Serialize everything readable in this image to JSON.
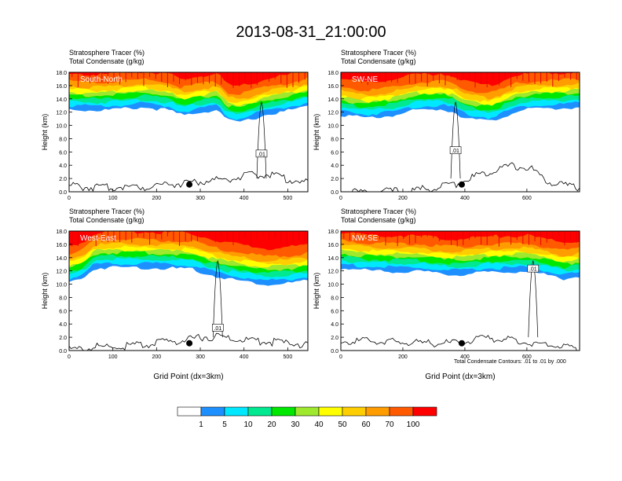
{
  "title": "2013-08-31_21:00:00",
  "chart_data": [
    {
      "type": "heatmap",
      "panel_label": "South-North",
      "title_lines": [
        "Stratosphere Tracer   (%)",
        "Total Condensate   (g/kg)"
      ],
      "ylabel": "Height (km)",
      "xlabel": "",
      "xlim": [
        0,
        546
      ],
      "xticks": [
        0,
        100,
        200,
        300,
        400,
        500
      ],
      "ylim": [
        0,
        18
      ],
      "yticks": [
        "0.0",
        "2.0",
        "4.0",
        "6.0",
        "8.0",
        "10.0",
        "12.0",
        "14.0",
        "16.0",
        "18.0"
      ],
      "tracer_base_km": [
        [
          0,
          12.6
        ],
        [
          60,
          12.4
        ],
        [
          120,
          12.6
        ],
        [
          170,
          12.9
        ],
        [
          230,
          12.4
        ],
        [
          260,
          11.6
        ],
        [
          290,
          12.1
        ],
        [
          340,
          12.5
        ],
        [
          360,
          11.0
        ],
        [
          380,
          10.6
        ],
        [
          410,
          10.9
        ],
        [
          440,
          11.6
        ],
        [
          480,
          12.1
        ],
        [
          520,
          12.6
        ],
        [
          546,
          13.0
        ]
      ],
      "terrain_km": [
        [
          0,
          1.2
        ],
        [
          40,
          1.0
        ],
        [
          80,
          0.9
        ],
        [
          120,
          1.1
        ],
        [
          180,
          1.0
        ],
        [
          200,
          1.4
        ],
        [
          240,
          1.5
        ],
        [
          300,
          1.8
        ],
        [
          340,
          2.1
        ],
        [
          380,
          2.4
        ],
        [
          420,
          2.8
        ],
        [
          460,
          3.0
        ],
        [
          500,
          2.2
        ],
        [
          546,
          1.6
        ]
      ],
      "contour_label": ".01",
      "contour_label_pos": [
        440,
        5.7
      ],
      "marker": [
        275,
        1.1
      ]
    },
    {
      "type": "heatmap",
      "panel_label": "SW-NE",
      "title_lines": [
        "Stratosphere Tracer   (%)",
        "Total Condensate   (g/kg)"
      ],
      "ylabel": "Height (km)",
      "xlabel": "",
      "xlim": [
        0,
        770
      ],
      "xticks": [
        0,
        200,
        400,
        600
      ],
      "ylim": [
        0,
        18
      ],
      "yticks": [
        "0.0",
        "2.0",
        "4.0",
        "6.0",
        "8.0",
        "10.0",
        "12.0",
        "14.0",
        "16.0",
        "18.0"
      ],
      "tracer_base_km": [
        [
          0,
          11.8
        ],
        [
          80,
          11.2
        ],
        [
          160,
          11.6
        ],
        [
          240,
          12.4
        ],
        [
          320,
          12.6
        ],
        [
          360,
          12.3
        ],
        [
          400,
          11.3
        ],
        [
          440,
          11.0
        ],
        [
          480,
          10.7
        ],
        [
          520,
          11.4
        ],
        [
          560,
          12.2
        ],
        [
          620,
          12.6
        ],
        [
          700,
          12.7
        ],
        [
          770,
          12.9
        ]
      ],
      "terrain_km": [
        [
          0,
          0.2
        ],
        [
          100,
          0.3
        ],
        [
          200,
          0.4
        ],
        [
          300,
          0.8
        ],
        [
          340,
          1.2
        ],
        [
          380,
          1.6
        ],
        [
          420,
          2.4
        ],
        [
          460,
          3.0
        ],
        [
          500,
          3.8
        ],
        [
          560,
          4.2
        ],
        [
          620,
          3.6
        ],
        [
          660,
          2.0
        ],
        [
          720,
          1.2
        ],
        [
          770,
          1.0
        ]
      ],
      "contour_label": ".01",
      "contour_label_pos": [
        370,
        6.2
      ],
      "marker": [
        390,
        1.1
      ]
    },
    {
      "type": "heatmap",
      "panel_label": "West-East",
      "title_lines": [
        "Stratosphere Tracer   (%)",
        "Total Condensate   (g/kg)"
      ],
      "ylabel": "Height (km)",
      "xlabel": "Grid Point (dx=3km)",
      "xlim": [
        0,
        546
      ],
      "xticks": [
        0,
        100,
        200,
        300,
        400,
        500
      ],
      "ylim": [
        0,
        18
      ],
      "yticks": [
        "0.0",
        "2.0",
        "4.0",
        "6.0",
        "8.0",
        "10.0",
        "12.0",
        "14.0",
        "16.0",
        "18.0"
      ],
      "tracer_base_km": [
        [
          0,
          10.4
        ],
        [
          30,
          11.0
        ],
        [
          60,
          12.6
        ],
        [
          120,
          12.7
        ],
        [
          200,
          12.6
        ],
        [
          280,
          12.4
        ],
        [
          320,
          11.6
        ],
        [
          360,
          11.0
        ],
        [
          400,
          10.6
        ],
        [
          450,
          10.1
        ],
        [
          500,
          10.3
        ],
        [
          546,
          10.6
        ]
      ],
      "terrain_km": [
        [
          0,
          0.4
        ],
        [
          60,
          0.8
        ],
        [
          120,
          0.9
        ],
        [
          180,
          1.2
        ],
        [
          220,
          1.6
        ],
        [
          260,
          1.8
        ],
        [
          300,
          2.3
        ],
        [
          340,
          2.4
        ],
        [
          380,
          2.0
        ],
        [
          420,
          1.8
        ],
        [
          460,
          1.6
        ],
        [
          500,
          1.4
        ],
        [
          546,
          1.2
        ]
      ],
      "contour_label": ".01",
      "contour_label_pos": [
        340,
        3.4
      ],
      "marker": [
        275,
        1.1
      ]
    },
    {
      "type": "heatmap",
      "panel_label": "NW-SE",
      "title_lines": [
        "Stratosphere Tracer   (%)",
        "Total Condensate   (g/kg)"
      ],
      "ylabel": "Height (km)",
      "xlabel": "Grid Point (dx=3km)",
      "xlim": [
        0,
        770
      ],
      "xticks": [
        0,
        200,
        400,
        600
      ],
      "ylim": [
        0,
        18
      ],
      "yticks": [
        "0.0",
        "2.0",
        "4.0",
        "6.0",
        "8.0",
        "10.0",
        "12.0",
        "14.0",
        "16.0",
        "18.0"
      ],
      "tracer_base_km": [
        [
          0,
          12.6
        ],
        [
          80,
          12.2
        ],
        [
          160,
          12.1
        ],
        [
          260,
          12.0
        ],
        [
          340,
          11.6
        ],
        [
          400,
          11.6
        ],
        [
          460,
          11.9
        ],
        [
          520,
          12.0
        ],
        [
          600,
          12.1
        ],
        [
          680,
          11.4
        ],
        [
          720,
          11.0
        ],
        [
          770,
          11.3
        ]
      ],
      "terrain_km": [
        [
          0,
          1.6
        ],
        [
          80,
          1.8
        ],
        [
          160,
          1.6
        ],
        [
          240,
          1.4
        ],
        [
          300,
          1.4
        ],
        [
          360,
          1.4
        ],
        [
          420,
          1.8
        ],
        [
          480,
          2.2
        ],
        [
          540,
          1.9
        ],
        [
          600,
          1.5
        ],
        [
          660,
          1.4
        ],
        [
          720,
          0.8
        ],
        [
          770,
          0.3
        ]
      ],
      "contour_label": ".01",
      "contour_label_pos": [
        620,
        12.3
      ],
      "marker": [
        390,
        1.1
      ]
    }
  ],
  "footnote": "Total Condensate Contours: .01 to .01 by .000",
  "colorbar": {
    "labels": [
      "1",
      "5",
      "10",
      "20",
      "30",
      "40",
      "50",
      "60",
      "70",
      "100"
    ],
    "colors": [
      "#ffffff",
      "#1e8fff",
      "#00e8ff",
      "#00e890",
      "#00e800",
      "#9ee82d",
      "#ffff00",
      "#ffce00",
      "#ff9c00",
      "#ff5a00",
      "#ff0000"
    ]
  }
}
